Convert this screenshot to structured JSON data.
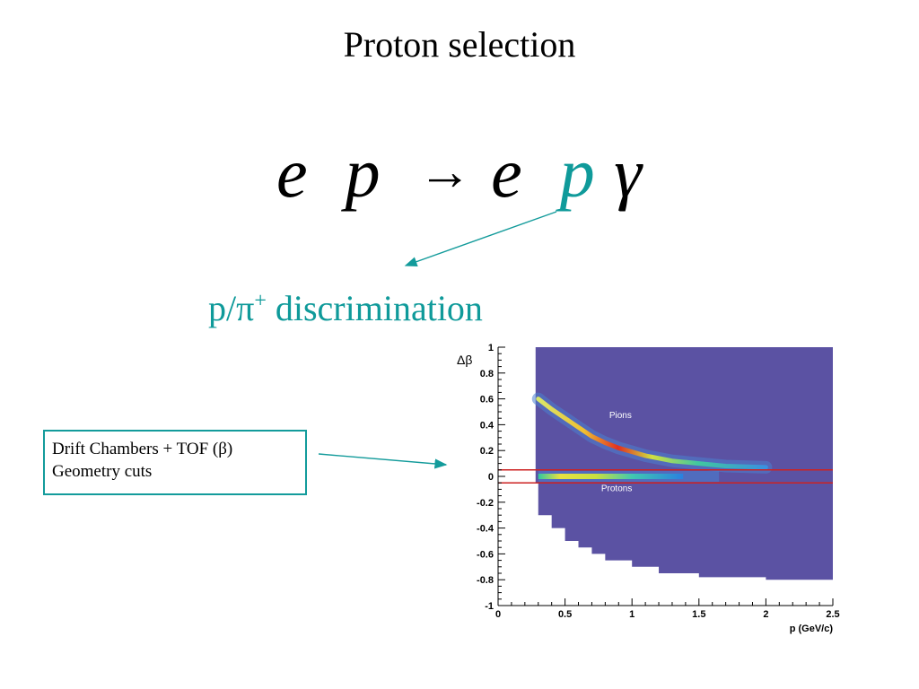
{
  "slide": {
    "title": "Proton selection",
    "reaction": {
      "e1": "e",
      "p1": "p",
      "arrow": "→",
      "e2": "e",
      "p2": "p",
      "gamma": "γ"
    },
    "discrimination": {
      "prefix": "p/π",
      "superscript": "+",
      "suffix": " discrimination"
    },
    "callout": {
      "line1": "Drift Chambers + TOF (β)",
      "line2": "Geometry cuts"
    },
    "colors": {
      "accent_teal": "#0f9a9a",
      "cut_line_red": "#cc2222",
      "histogram_background": "#5b52a3"
    }
  },
  "chart_data": {
    "type": "heatmap",
    "xlabel": "p (GeV/c)",
    "ylabel": "Δβ",
    "xlim": [
      0,
      2.5
    ],
    "ylim": [
      -1,
      1
    ],
    "xticks": [
      "0",
      "0.5",
      "1",
      "1.5",
      "2",
      "2.5"
    ],
    "yticks": [
      "1",
      "0.8",
      "0.6",
      "0.4",
      "0.2",
      "0",
      "-0.2",
      "-0.4",
      "-0.6",
      "-0.8",
      "-1"
    ],
    "annotations": [
      "Pions",
      "Protons"
    ],
    "cut_lines_y": [
      0.05,
      -0.05
    ],
    "filled_region": {
      "x_min": 0.28,
      "upper_y": 1,
      "lower_boundary": [
        [
          0.28,
          -0.05
        ],
        [
          0.3,
          -0.3
        ],
        [
          0.4,
          -0.4
        ],
        [
          0.5,
          -0.5
        ],
        [
          0.6,
          -0.55
        ],
        [
          0.7,
          -0.6
        ],
        [
          0.8,
          -0.65
        ],
        [
          1.0,
          -0.7
        ],
        [
          1.2,
          -0.75
        ],
        [
          1.5,
          -0.78
        ],
        [
          2.0,
          -0.8
        ],
        [
          2.5,
          -0.8
        ]
      ]
    },
    "pion_band": [
      [
        0.3,
        0.6
      ],
      [
        0.4,
        0.52
      ],
      [
        0.5,
        0.45
      ],
      [
        0.6,
        0.38
      ],
      [
        0.7,
        0.31
      ],
      [
        0.8,
        0.26
      ],
      [
        0.9,
        0.22
      ],
      [
        1.0,
        0.19
      ],
      [
        1.1,
        0.16
      ],
      [
        1.2,
        0.14
      ],
      [
        1.3,
        0.12
      ],
      [
        1.4,
        0.11
      ],
      [
        1.5,
        0.1
      ],
      [
        1.7,
        0.08
      ],
      [
        2.0,
        0.07
      ]
    ],
    "proton_band": {
      "x_start": 0.3,
      "x_end": 1.65,
      "y": 0.0
    }
  }
}
